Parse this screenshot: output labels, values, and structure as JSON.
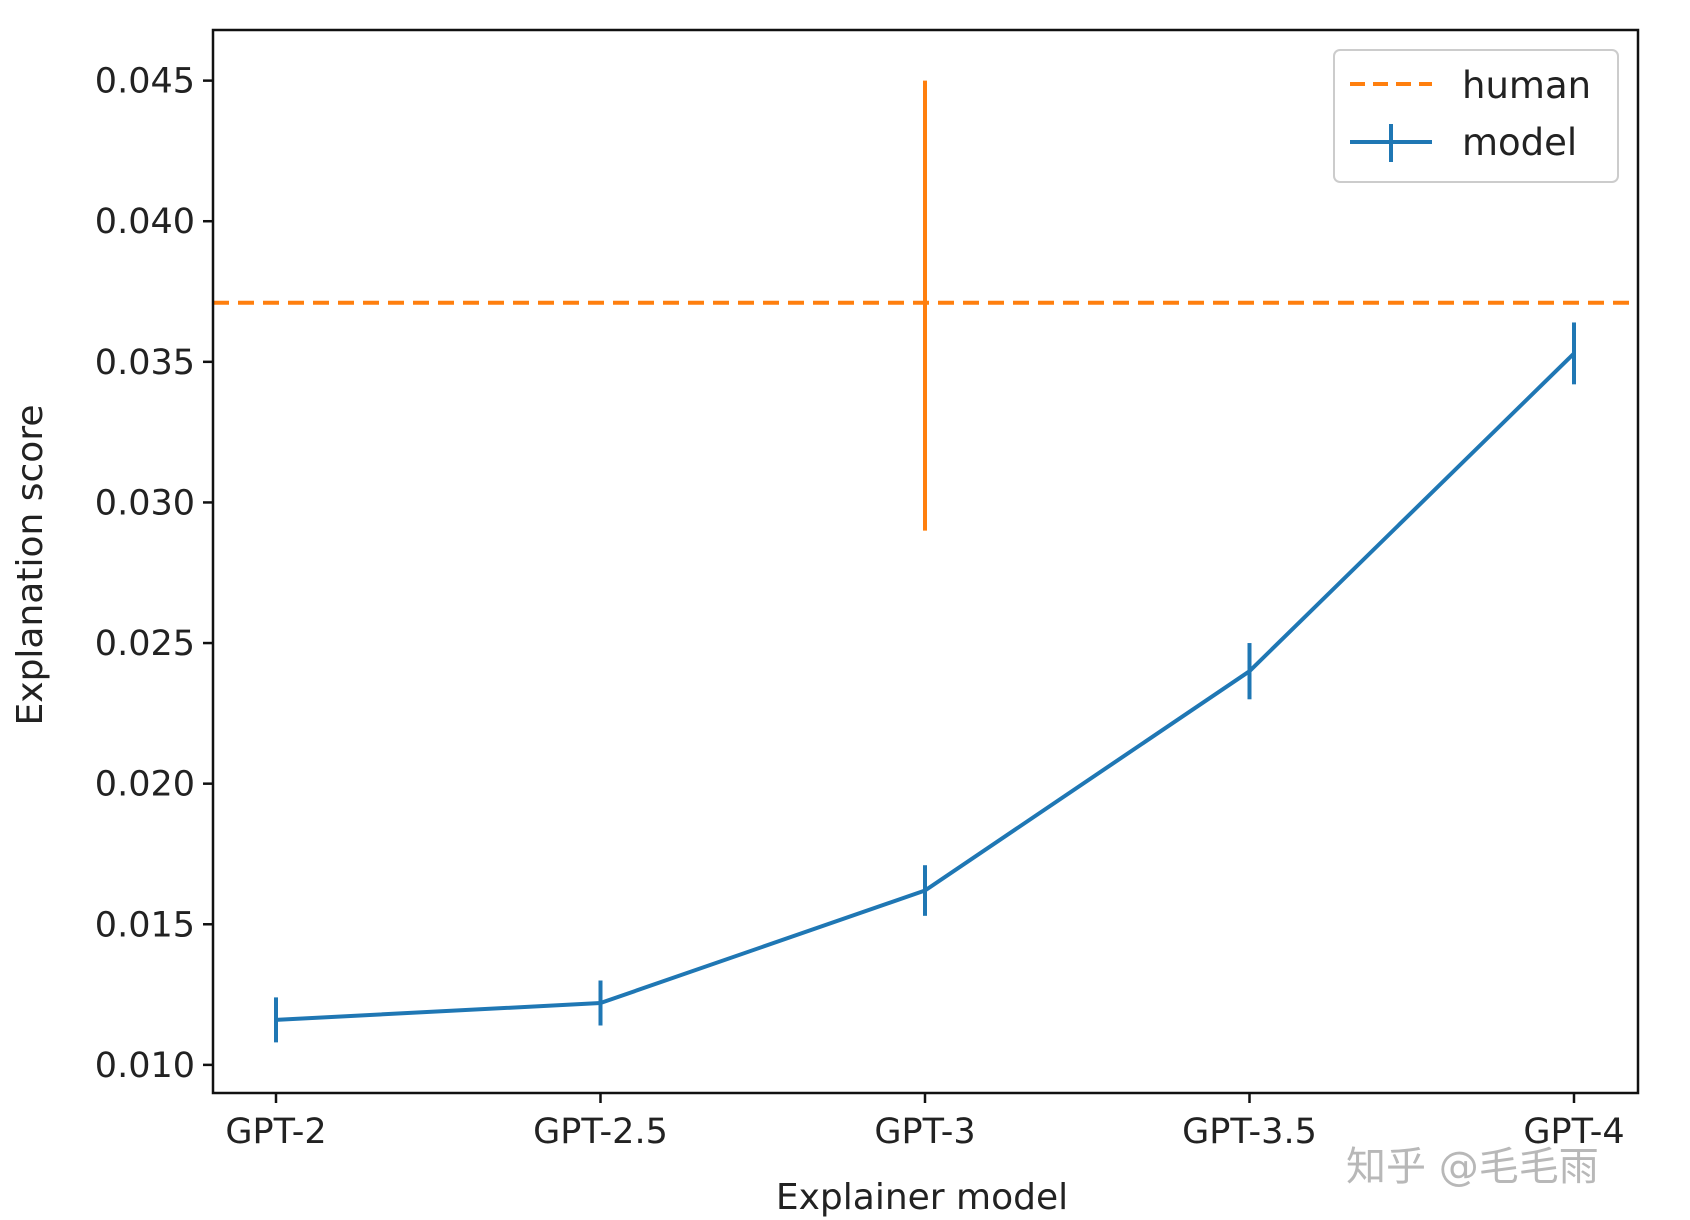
{
  "chart_data": {
    "type": "line",
    "title": "",
    "xlabel": "Explainer model",
    "ylabel": "Explanation score",
    "categories": [
      "GPT-2",
      "GPT-2.5",
      "GPT-3",
      "GPT-3.5",
      "GPT-4"
    ],
    "ylim": [
      0.009,
      0.0468
    ],
    "yticks": [
      0.01,
      0.015,
      0.02,
      0.025,
      0.03,
      0.035,
      0.04,
      0.045
    ],
    "ytick_labels": [
      "0.010",
      "0.015",
      "0.020",
      "0.025",
      "0.030",
      "0.035",
      "0.040",
      "0.045"
    ],
    "series": [
      {
        "name": "model",
        "color": "#1f77b4",
        "style": "solid",
        "values": [
          0.0116,
          0.0122,
          0.0162,
          0.024,
          0.0353
        ],
        "errors": [
          0.0008,
          0.0008,
          0.0009,
          0.001,
          0.0011
        ]
      }
    ],
    "reference": {
      "name": "human",
      "color": "#ff7f0e",
      "style": "dashed",
      "value": 0.0371,
      "error_at": "GPT-3",
      "error_range": [
        0.029,
        0.045
      ]
    },
    "legend": {
      "position": "top-right",
      "entries": [
        "human",
        "model"
      ]
    },
    "grid": false
  },
  "watermark": "知乎 @毛毛雨"
}
